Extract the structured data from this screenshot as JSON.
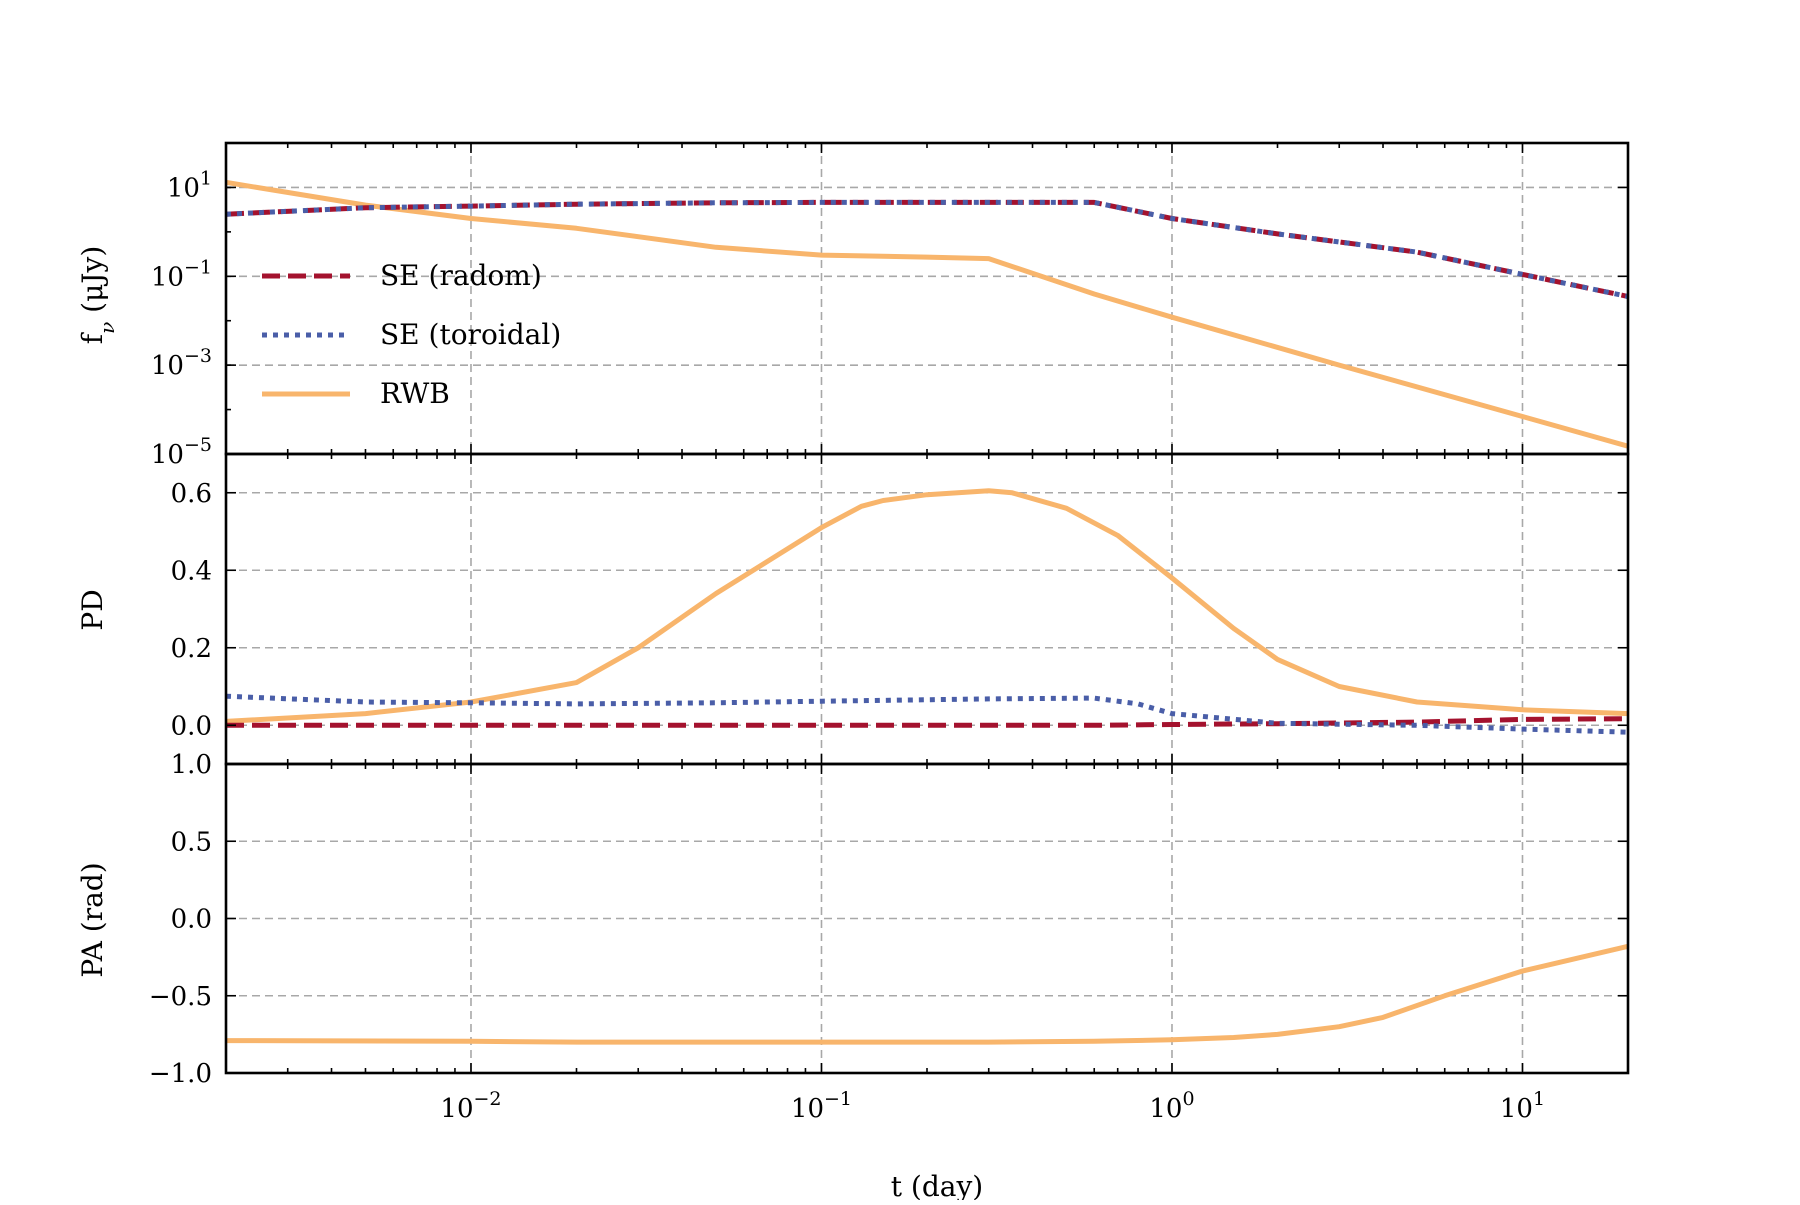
{
  "chart_data": {
    "type": "line",
    "shared_x": {
      "label": "t (day)",
      "scale": "log",
      "lim": [
        0.002,
        20
      ],
      "ticks": [
        {
          "value": 0.01,
          "base": "10",
          "exp": "−2"
        },
        {
          "value": 0.1,
          "base": "10",
          "exp": "−1"
        },
        {
          "value": 1,
          "base": "10",
          "exp": "0"
        },
        {
          "value": 10,
          "base": "10",
          "exp": "1"
        }
      ]
    },
    "colors": {
      "se_radom": "#a4122e",
      "se_toroidal": "#4a5ea8",
      "rwb": "#f8b56c"
    },
    "legend": {
      "placement": "upper-left of top panel",
      "entries": [
        {
          "name": "SE (radom)",
          "style": "dashed",
          "color_key": "se_radom"
        },
        {
          "name": "SE (toroidal)",
          "style": "dotted",
          "color_key": "se_toroidal"
        },
        {
          "name": "RWB",
          "style": "solid",
          "color_key": "rwb"
        }
      ]
    },
    "panels": [
      {
        "id": "flux",
        "ylabel": "f",
        "ylabel_sub": "ν",
        "ylabel_rest": " (μJy)",
        "yscale": "log",
        "ylim": [
          1e-05,
          100
        ],
        "yticks": [
          {
            "value": 10,
            "base": "10",
            "exp": "1"
          },
          {
            "value": 0.1,
            "base": "10",
            "exp": "−1"
          },
          {
            "value": 0.001,
            "base": "10",
            "exp": "−3"
          },
          {
            "value": 1e-05,
            "base": "10",
            "exp": "−5"
          }
        ],
        "series": [
          {
            "name": "SE (radom)",
            "color_key": "se_radom",
            "style": "dashed",
            "x": [
              0.002,
              0.005,
              0.01,
              0.02,
              0.05,
              0.1,
              0.3,
              0.6,
              1,
              2,
              5,
              10,
              20
            ],
            "y": [
              2.5,
              3.5,
              3.8,
              4.2,
              4.5,
              4.6,
              4.6,
              4.6,
              2.0,
              0.9,
              0.35,
              0.11,
              0.035
            ]
          },
          {
            "name": "SE (toroidal)",
            "color_key": "se_toroidal",
            "style": "dotted",
            "x": [
              0.002,
              0.005,
              0.01,
              0.02,
              0.05,
              0.1,
              0.3,
              0.6,
              1,
              2,
              5,
              10,
              20
            ],
            "y": [
              2.5,
              3.5,
              3.8,
              4.2,
              4.5,
              4.6,
              4.6,
              4.6,
              2.0,
              0.9,
              0.35,
              0.11,
              0.035
            ]
          },
          {
            "name": "RWB",
            "color_key": "rwb",
            "style": "solid",
            "x": [
              0.002,
              0.005,
              0.01,
              0.02,
              0.05,
              0.1,
              0.2,
              0.3,
              0.6,
              1,
              3,
              10,
              20
            ],
            "y": [
              13,
              4,
              2,
              1.2,
              0.45,
              0.3,
              0.27,
              0.25,
              0.04,
              0.012,
              0.001,
              7e-05,
              1.5e-05
            ]
          }
        ]
      },
      {
        "id": "pd",
        "ylabel": "PD",
        "yscale": "linear",
        "ylim": [
          -0.1,
          0.7
        ],
        "yticks": [
          {
            "value": 0.0,
            "label": "0.0"
          },
          {
            "value": 0.2,
            "label": "0.2"
          },
          {
            "value": 0.4,
            "label": "0.4"
          },
          {
            "value": 0.6,
            "label": "0.6"
          }
        ],
        "series": [
          {
            "name": "SE (radom)",
            "color_key": "se_radom",
            "style": "dashed",
            "x": [
              0.002,
              0.01,
              0.1,
              0.3,
              0.6,
              1,
              2,
              5,
              10,
              20
            ],
            "y": [
              0.0,
              0.0,
              0.0,
              0.0,
              0.0,
              0.002,
              0.004,
              0.008,
              0.015,
              0.017
            ]
          },
          {
            "name": "SE (toroidal)",
            "color_key": "se_toroidal",
            "style": "dotted",
            "x": [
              0.002,
              0.005,
              0.01,
              0.02,
              0.05,
              0.1,
              0.3,
              0.6,
              0.8,
              1,
              2,
              5,
              10,
              20
            ],
            "y": [
              0.075,
              0.06,
              0.058,
              0.055,
              0.058,
              0.062,
              0.068,
              0.07,
              0.055,
              0.03,
              0.005,
              0.0,
              -0.01,
              -0.018
            ]
          },
          {
            "name": "RWB",
            "color_key": "rwb",
            "style": "solid",
            "x": [
              0.002,
              0.005,
              0.01,
              0.02,
              0.03,
              0.05,
              0.1,
              0.13,
              0.15,
              0.2,
              0.3,
              0.35,
              0.5,
              0.7,
              1,
              1.5,
              2,
              3,
              5,
              10,
              20
            ],
            "y": [
              0.01,
              0.03,
              0.06,
              0.11,
              0.2,
              0.34,
              0.51,
              0.565,
              0.58,
              0.595,
              0.605,
              0.6,
              0.56,
              0.49,
              0.38,
              0.25,
              0.17,
              0.1,
              0.06,
              0.04,
              0.03
            ]
          }
        ]
      },
      {
        "id": "pa",
        "ylabel": "PA (rad)",
        "yscale": "linear",
        "ylim": [
          -1.0,
          1.0
        ],
        "yticks": [
          {
            "value": 1.0,
            "label": "1.0"
          },
          {
            "value": 0.5,
            "label": "0.5"
          },
          {
            "value": 0.0,
            "label": "0.0"
          },
          {
            "value": -0.5,
            "label": "−0.5"
          },
          {
            "value": -1.0,
            "label": "−1.0"
          }
        ],
        "series": [
          {
            "name": "RWB",
            "color_key": "rwb",
            "style": "solid",
            "x": [
              0.002,
              0.01,
              0.02,
              0.1,
              0.3,
              0.6,
              1,
              1.5,
              2,
              3,
              4,
              6,
              10,
              20
            ],
            "y": [
              -0.79,
              -0.795,
              -0.8,
              -0.8,
              -0.8,
              -0.795,
              -0.785,
              -0.77,
              -0.75,
              -0.7,
              -0.64,
              -0.5,
              -0.34,
              -0.18
            ]
          }
        ]
      }
    ]
  }
}
